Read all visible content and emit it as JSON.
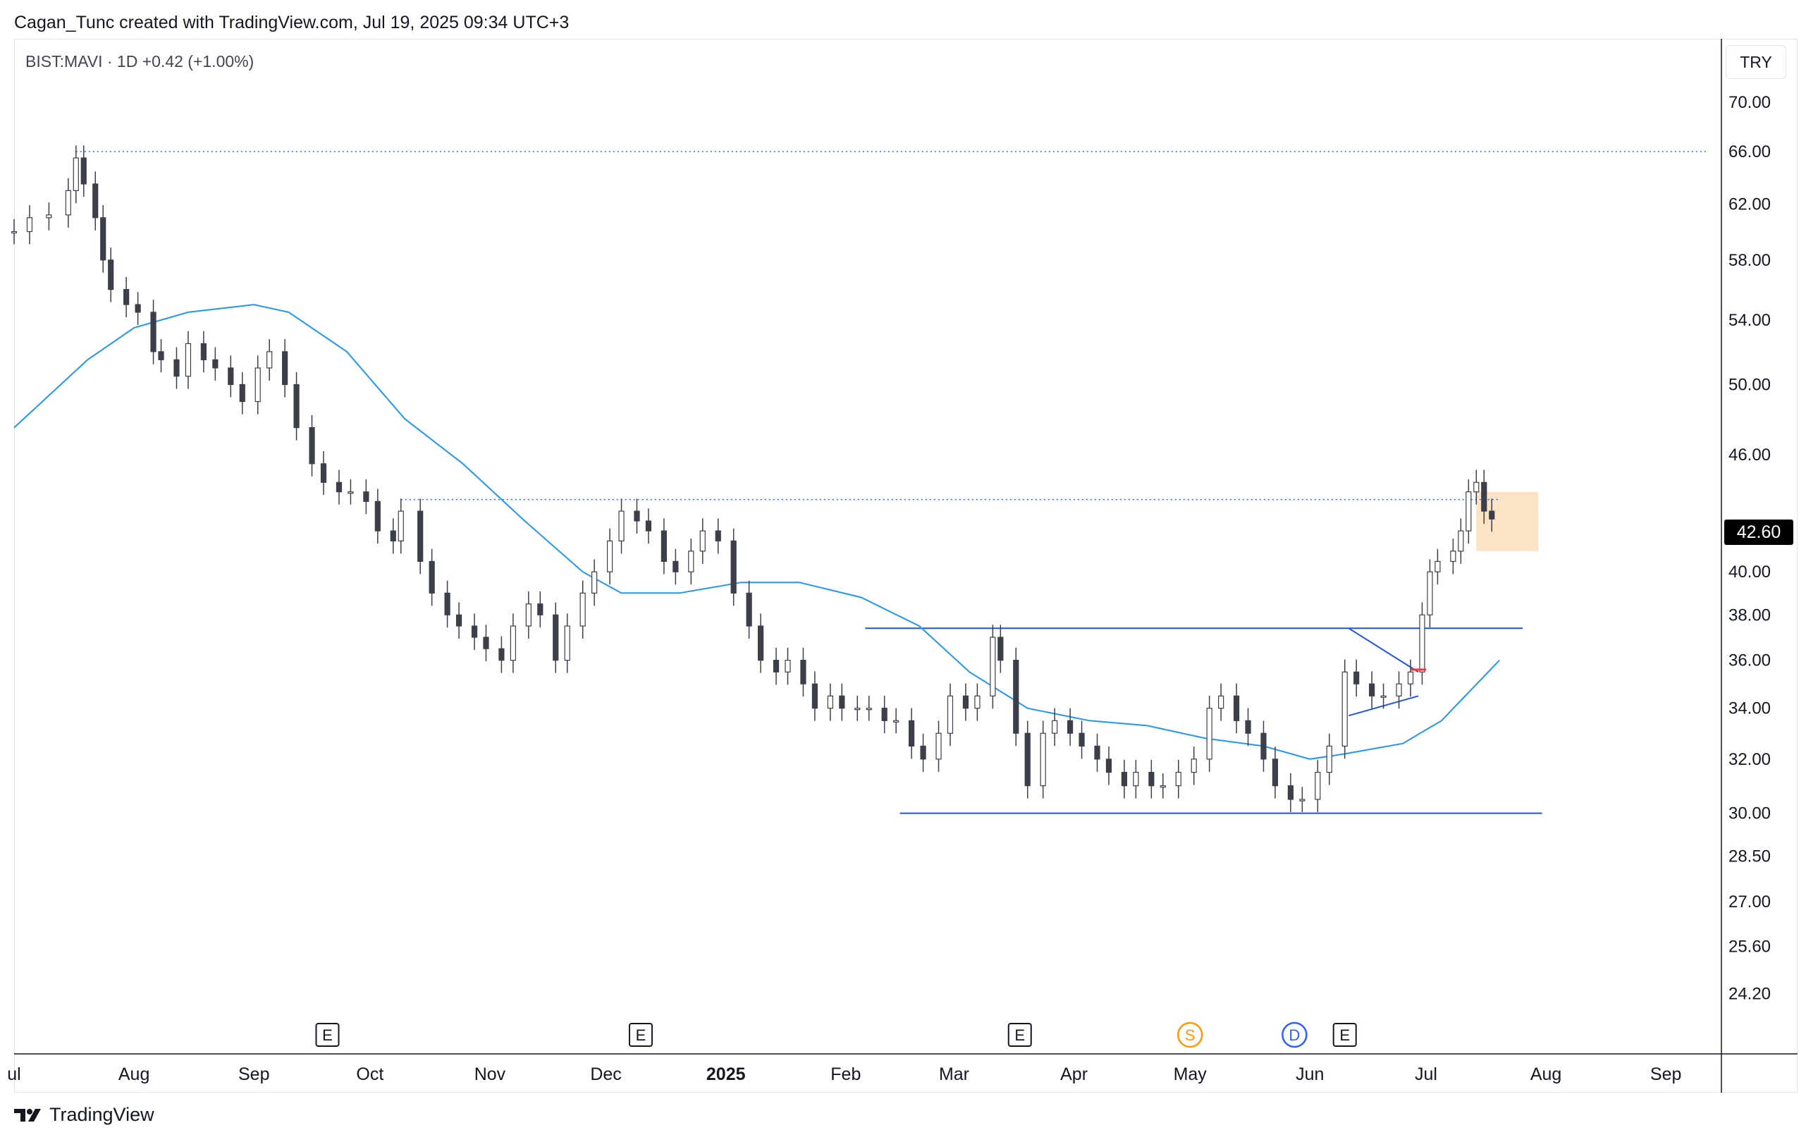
{
  "header": {
    "attribution": "Cagan_Tunc created with TradingView.com, Jul 19, 2025 09:34 UTC+3"
  },
  "legend": {
    "symbol_line": "BIST:MAVI · 1D  +0.42 (+1.00%)"
  },
  "currency": "TRY",
  "last_price_label": "42.60",
  "footer": {
    "brand": "TradingView"
  },
  "colors": {
    "candle": "#3c3f4a",
    "candle_up_fill": "#ffffff",
    "ma_line": "#2196f3",
    "trendline": "#1e53e5",
    "dotted_level": "#2962ff",
    "highlight_box": "#fbe0bd",
    "red_mark": "#f23645",
    "event_s": "#ff9800",
    "event_d": "#2962ff"
  },
  "chart_data": {
    "type": "candlestick",
    "symbol": "BIST:MAVI",
    "interval": "1D",
    "y_scale": "log",
    "ylim": [
      23.0,
      73.0
    ],
    "y_ticks": [
      "70.00",
      "66.00",
      "62.00",
      "58.00",
      "54.00",
      "50.00",
      "46.00",
      "42.60",
      "40.00",
      "38.00",
      "36.00",
      "34.00",
      "32.00",
      "30.00",
      "28.50",
      "27.00",
      "25.60",
      "24.20"
    ],
    "x_ticks": [
      {
        "label": "ul",
        "date": "2024-07-01"
      },
      {
        "label": "Aug",
        "date": "2024-08-01"
      },
      {
        "label": "Sep",
        "date": "2024-09-01"
      },
      {
        "label": "Oct",
        "date": "2024-10-01"
      },
      {
        "label": "Nov",
        "date": "2024-11-01"
      },
      {
        "label": "Dec",
        "date": "2024-12-01"
      },
      {
        "label": "2025",
        "date": "2025-01-01",
        "bold": true
      },
      {
        "label": "Feb",
        "date": "2025-02-01"
      },
      {
        "label": "Mar",
        "date": "2025-03-01"
      },
      {
        "label": "Apr",
        "date": "2025-04-01"
      },
      {
        "label": "May",
        "date": "2025-05-01"
      },
      {
        "label": "Jun",
        "date": "2025-06-01"
      },
      {
        "label": "Jul",
        "date": "2025-07-01"
      },
      {
        "label": "Aug",
        "date": "2025-08-01"
      },
      {
        "label": "Sep",
        "date": "2025-09-01"
      }
    ],
    "x_range": [
      "2024-07-01",
      "2025-09-15"
    ],
    "series": [
      {
        "date": "2024-07-01",
        "close": 60.0
      },
      {
        "date": "2024-07-05",
        "close": 61.0
      },
      {
        "date": "2024-07-10",
        "close": 61.2
      },
      {
        "date": "2024-07-15",
        "close": 63.0
      },
      {
        "date": "2024-07-17",
        "close": 65.5
      },
      {
        "date": "2024-07-19",
        "close": 63.5
      },
      {
        "date": "2024-07-22",
        "close": 61.0
      },
      {
        "date": "2024-07-24",
        "close": 58.0
      },
      {
        "date": "2024-07-26",
        "close": 56.0
      },
      {
        "date": "2024-07-30",
        "close": 55.0
      },
      {
        "date": "2024-08-02",
        "close": 54.5
      },
      {
        "date": "2024-08-06",
        "close": 52.0
      },
      {
        "date": "2024-08-08",
        "close": 51.5
      },
      {
        "date": "2024-08-12",
        "close": 50.5
      },
      {
        "date": "2024-08-15",
        "close": 52.5
      },
      {
        "date": "2024-08-19",
        "close": 51.5
      },
      {
        "date": "2024-08-22",
        "close": 51.0
      },
      {
        "date": "2024-08-26",
        "close": 50.0
      },
      {
        "date": "2024-08-29",
        "close": 49.0
      },
      {
        "date": "2024-09-02",
        "close": 51.0
      },
      {
        "date": "2024-09-05",
        "close": 52.0
      },
      {
        "date": "2024-09-09",
        "close": 50.0
      },
      {
        "date": "2024-09-12",
        "close": 47.5
      },
      {
        "date": "2024-09-16",
        "close": 45.5
      },
      {
        "date": "2024-09-19",
        "close": 44.5
      },
      {
        "date": "2024-09-23",
        "close": 44.0
      },
      {
        "date": "2024-09-26",
        "close": 44.0
      },
      {
        "date": "2024-09-30",
        "close": 43.5
      },
      {
        "date": "2024-10-03",
        "close": 42.0
      },
      {
        "date": "2024-10-07",
        "close": 41.5
      },
      {
        "date": "2024-10-09",
        "close": 43.0
      },
      {
        "date": "2024-10-14",
        "close": 40.5
      },
      {
        "date": "2024-10-17",
        "close": 39.0
      },
      {
        "date": "2024-10-21",
        "close": 38.0
      },
      {
        "date": "2024-10-24",
        "close": 37.5
      },
      {
        "date": "2024-10-28",
        "close": 37.0
      },
      {
        "date": "2024-10-31",
        "close": 36.5
      },
      {
        "date": "2024-11-04",
        "close": 36.0
      },
      {
        "date": "2024-11-07",
        "close": 37.5
      },
      {
        "date": "2024-11-11",
        "close": 38.5
      },
      {
        "date": "2024-11-14",
        "close": 38.0
      },
      {
        "date": "2024-11-18",
        "close": 36.0
      },
      {
        "date": "2024-11-21",
        "close": 37.5
      },
      {
        "date": "2024-11-25",
        "close": 39.0
      },
      {
        "date": "2024-11-28",
        "close": 40.0
      },
      {
        "date": "2024-12-02",
        "close": 41.5
      },
      {
        "date": "2024-12-05",
        "close": 43.0
      },
      {
        "date": "2024-12-09",
        "close": 42.5
      },
      {
        "date": "2024-12-12",
        "close": 42.0
      },
      {
        "date": "2024-12-16",
        "close": 40.5
      },
      {
        "date": "2024-12-19",
        "close": 40.0
      },
      {
        "date": "2024-12-23",
        "close": 41.0
      },
      {
        "date": "2024-12-26",
        "close": 42.0
      },
      {
        "date": "2024-12-30",
        "close": 41.5
      },
      {
        "date": "2025-01-03",
        "close": 39.0
      },
      {
        "date": "2025-01-07",
        "close": 37.5
      },
      {
        "date": "2025-01-10",
        "close": 36.0
      },
      {
        "date": "2025-01-14",
        "close": 35.5
      },
      {
        "date": "2025-01-17",
        "close": 36.0
      },
      {
        "date": "2025-01-21",
        "close": 35.0
      },
      {
        "date": "2025-01-24",
        "close": 34.0
      },
      {
        "date": "2025-01-28",
        "close": 34.5
      },
      {
        "date": "2025-01-31",
        "close": 34.0
      },
      {
        "date": "2025-02-04",
        "close": 34.0
      },
      {
        "date": "2025-02-07",
        "close": 34.0
      },
      {
        "date": "2025-02-11",
        "close": 33.5
      },
      {
        "date": "2025-02-14",
        "close": 33.5
      },
      {
        "date": "2025-02-18",
        "close": 32.5
      },
      {
        "date": "2025-02-21",
        "close": 32.0
      },
      {
        "date": "2025-02-25",
        "close": 33.0
      },
      {
        "date": "2025-02-28",
        "close": 34.5
      },
      {
        "date": "2025-03-04",
        "close": 34.0
      },
      {
        "date": "2025-03-07",
        "close": 34.5
      },
      {
        "date": "2025-03-11",
        "close": 37.0
      },
      {
        "date": "2025-03-13",
        "close": 36.0
      },
      {
        "date": "2025-03-17",
        "close": 33.0
      },
      {
        "date": "2025-03-20",
        "close": 31.0
      },
      {
        "date": "2025-03-24",
        "close": 33.0
      },
      {
        "date": "2025-03-27",
        "close": 33.5
      },
      {
        "date": "2025-03-31",
        "close": 33.0
      },
      {
        "date": "2025-04-03",
        "close": 32.5
      },
      {
        "date": "2025-04-07",
        "close": 32.0
      },
      {
        "date": "2025-04-10",
        "close": 31.5
      },
      {
        "date": "2025-04-14",
        "close": 31.0
      },
      {
        "date": "2025-04-17",
        "close": 31.5
      },
      {
        "date": "2025-04-21",
        "close": 31.0
      },
      {
        "date": "2025-04-24",
        "close": 31.0
      },
      {
        "date": "2025-04-28",
        "close": 31.5
      },
      {
        "date": "2025-05-02",
        "close": 32.0
      },
      {
        "date": "2025-05-06",
        "close": 34.0
      },
      {
        "date": "2025-05-09",
        "close": 34.5
      },
      {
        "date": "2025-05-13",
        "close": 33.5
      },
      {
        "date": "2025-05-16",
        "close": 33.0
      },
      {
        "date": "2025-05-20",
        "close": 32.0
      },
      {
        "date": "2025-05-23",
        "close": 31.0
      },
      {
        "date": "2025-05-27",
        "close": 30.5
      },
      {
        "date": "2025-05-30",
        "close": 30.5
      },
      {
        "date": "2025-06-03",
        "close": 31.5
      },
      {
        "date": "2025-06-06",
        "close": 32.5
      },
      {
        "date": "2025-06-10",
        "close": 35.5
      },
      {
        "date": "2025-06-13",
        "close": 35.0
      },
      {
        "date": "2025-06-17",
        "close": 34.5
      },
      {
        "date": "2025-06-20",
        "close": 34.5
      },
      {
        "date": "2025-06-24",
        "close": 35.0
      },
      {
        "date": "2025-06-27",
        "close": 35.5
      },
      {
        "date": "2025-06-30",
        "close": 38.0
      },
      {
        "date": "2025-07-02",
        "close": 40.0
      },
      {
        "date": "2025-07-04",
        "close": 40.5
      },
      {
        "date": "2025-07-08",
        "close": 41.0
      },
      {
        "date": "2025-07-10",
        "close": 42.0
      },
      {
        "date": "2025-07-12",
        "close": 44.0
      },
      {
        "date": "2025-07-14",
        "close": 44.5
      },
      {
        "date": "2025-07-16",
        "close": 43.0
      },
      {
        "date": "2025-07-18",
        "close": 42.6
      }
    ],
    "moving_average": [
      {
        "date": "2024-07-01",
        "value": 47.5
      },
      {
        "date": "2024-07-20",
        "value": 51.5
      },
      {
        "date": "2024-08-01",
        "value": 53.5
      },
      {
        "date": "2024-08-15",
        "value": 54.5
      },
      {
        "date": "2024-09-01",
        "value": 55.0
      },
      {
        "date": "2024-09-10",
        "value": 54.5
      },
      {
        "date": "2024-09-25",
        "value": 52.0
      },
      {
        "date": "2024-10-10",
        "value": 48.0
      },
      {
        "date": "2024-10-25",
        "value": 45.5
      },
      {
        "date": "2024-11-10",
        "value": 42.5
      },
      {
        "date": "2024-11-25",
        "value": 40.0
      },
      {
        "date": "2024-12-05",
        "value": 39.0
      },
      {
        "date": "2024-12-20",
        "value": 39.0
      },
      {
        "date": "2025-01-05",
        "value": 39.5
      },
      {
        "date": "2025-01-20",
        "value": 39.5
      },
      {
        "date": "2025-02-05",
        "value": 38.8
      },
      {
        "date": "2025-02-20",
        "value": 37.5
      },
      {
        "date": "2025-03-05",
        "value": 35.5
      },
      {
        "date": "2025-03-20",
        "value": 34.0
      },
      {
        "date": "2025-04-05",
        "value": 33.5
      },
      {
        "date": "2025-04-20",
        "value": 33.3
      },
      {
        "date": "2025-05-05",
        "value": 32.8
      },
      {
        "date": "2025-05-20",
        "value": 32.5
      },
      {
        "date": "2025-06-01",
        "value": 32.0
      },
      {
        "date": "2025-06-10",
        "value": 32.2
      },
      {
        "date": "2025-06-25",
        "value": 32.6
      },
      {
        "date": "2025-07-05",
        "value": 33.5
      },
      {
        "date": "2025-07-20",
        "value": 36.0
      }
    ],
    "horizontal_levels": [
      {
        "value": 66.0,
        "style": "dotted",
        "from": "2024-07-17",
        "to": "2025-09-12"
      },
      {
        "value": 43.6,
        "style": "dotted",
        "from": "2024-10-09",
        "to": "2025-07-20"
      },
      {
        "value": 37.4,
        "style": "solid",
        "from": "2025-02-06",
        "to": "2025-07-26"
      },
      {
        "value": 30.0,
        "style": "solid",
        "from": "2025-02-15",
        "to": "2025-07-31"
      }
    ],
    "triangle": [
      {
        "from": {
          "date": "2025-06-11",
          "value": 37.4
        },
        "to": {
          "date": "2025-06-29",
          "value": 35.5
        }
      },
      {
        "from": {
          "date": "2025-06-11",
          "value": 33.7
        },
        "to": {
          "date": "2025-06-29",
          "value": 34.5
        }
      }
    ],
    "highlight_box": {
      "from": "2025-07-14",
      "to": "2025-07-30",
      "top": 44.0,
      "bottom": 41.0
    },
    "events": [
      {
        "label": "E",
        "date": "2024-09-20",
        "kind": "earnings"
      },
      {
        "label": "E",
        "date": "2024-12-10",
        "kind": "earnings"
      },
      {
        "label": "E",
        "date": "2025-03-18",
        "kind": "earnings"
      },
      {
        "label": "S",
        "date": "2025-05-01",
        "kind": "split"
      },
      {
        "label": "D",
        "date": "2025-05-28",
        "kind": "dividend"
      },
      {
        "label": "E",
        "date": "2025-06-10",
        "kind": "earnings"
      }
    ]
  }
}
